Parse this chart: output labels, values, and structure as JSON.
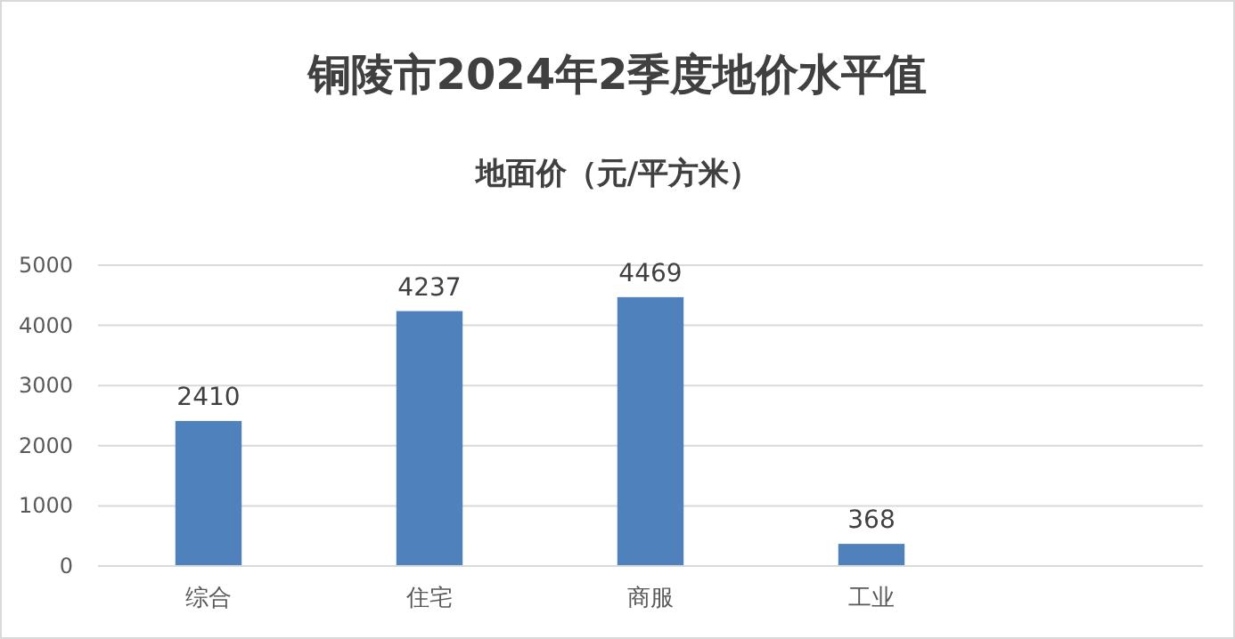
{
  "chart_data": {
    "type": "bar",
    "title": "铜陵市2024年2季度地价水平值",
    "subtitle": "地面价（元/平方米）",
    "categories": [
      "综合",
      "住宅",
      "商服",
      "工业",
      null
    ],
    "series": [
      {
        "color": "#4f81bd",
        "values": [
          2410,
          4237,
          4469,
          368,
          null
        ]
      }
    ],
    "ylim": [
      0,
      5000
    ],
    "yticks": [
      0,
      1000,
      2000,
      3000,
      4000,
      5000
    ],
    "grid": "y",
    "data_labels": true
  }
}
